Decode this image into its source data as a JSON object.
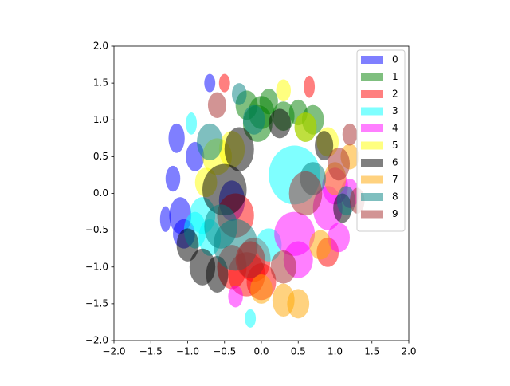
{
  "chart_data": {
    "type": "ellipse",
    "alpha": 0.5,
    "legend": "upper right",
    "xlim": [
      -2,
      2
    ],
    "ylim": [
      -2,
      2
    ],
    "xticks": [
      {
        "value": -2,
        "label": "−2.0"
      },
      {
        "value": -1.5,
        "label": "−1.5"
      },
      {
        "value": -1,
        "label": "−1.0"
      },
      {
        "value": -0.5,
        "label": "−0.5"
      },
      {
        "value": 0,
        "label": "0.0"
      },
      {
        "value": 0.5,
        "label": "0.5"
      },
      {
        "value": 1,
        "label": "1.0"
      },
      {
        "value": 1.5,
        "label": "1.5"
      },
      {
        "value": 2,
        "label": "2.0"
      }
    ],
    "yticks": [
      {
        "value": -2,
        "label": "−2.0"
      },
      {
        "value": -1.5,
        "label": "−1.5"
      },
      {
        "value": -1,
        "label": "−1.0"
      },
      {
        "value": -0.5,
        "label": "−0.5"
      },
      {
        "value": 0,
        "label": "0.0"
      },
      {
        "value": 0.5,
        "label": "0.5"
      },
      {
        "value": 1,
        "label": "1.0"
      },
      {
        "value": 1.5,
        "label": "1.5"
      },
      {
        "value": 2,
        "label": "2.0"
      }
    ],
    "series": [
      {
        "name": "0",
        "color": "blue",
        "x": [
          -1.1,
          -0.7,
          -1.15,
          -1.2,
          -1.3,
          -0.4,
          -0.9,
          -1.05
        ],
        "y": [
          -0.3,
          1.5,
          0.75,
          0.2,
          -0.35,
          -0.1,
          0.5,
          -0.55
        ],
        "width": [
          0.3,
          0.15,
          0.22,
          0.2,
          0.15,
          0.35,
          0.25,
          0.3
        ],
        "height": [
          0.5,
          0.25,
          0.4,
          0.35,
          0.35,
          0.55,
          0.4,
          0.4
        ]
      },
      {
        "name": "1",
        "color": "green",
        "x": [
          0.0,
          0.3,
          -0.2,
          0.5,
          0.7,
          0.1,
          -0.05,
          0.6
        ],
        "y": [
          1.1,
          1.05,
          1.2,
          1.1,
          1.0,
          1.25,
          0.95,
          0.9
        ],
        "width": [
          0.35,
          0.3,
          0.3,
          0.25,
          0.3,
          0.25,
          0.4,
          0.3
        ],
        "height": [
          0.45,
          0.4,
          0.4,
          0.35,
          0.4,
          0.35,
          0.5,
          0.4
        ]
      },
      {
        "name": "2",
        "color": "red",
        "x": [
          -0.2,
          -0.4,
          0.0,
          0.9,
          -0.5,
          0.65,
          -0.35,
          -0.1
        ],
        "y": [
          -1.1,
          -1.0,
          -1.2,
          -0.8,
          1.5,
          1.45,
          -0.3,
          -0.9
        ],
        "width": [
          0.5,
          0.4,
          0.4,
          0.3,
          0.15,
          0.15,
          0.5,
          0.45
        ],
        "height": [
          0.6,
          0.6,
          0.5,
          0.4,
          0.25,
          0.3,
          0.6,
          0.6
        ]
      },
      {
        "name": "3",
        "color": "cyan",
        "x": [
          -0.9,
          -0.7,
          -0.15,
          0.45,
          -0.95,
          0.1,
          -0.8
        ],
        "y": [
          -0.5,
          -0.6,
          -1.7,
          0.25,
          0.95,
          -0.7,
          -0.3
        ],
        "width": [
          0.3,
          0.3,
          0.15,
          0.7,
          0.15,
          0.35,
          0.35
        ],
        "height": [
          0.5,
          0.5,
          0.25,
          0.8,
          0.3,
          0.45,
          0.5
        ]
      },
      {
        "name": "4",
        "color": "magenta",
        "x": [
          0.9,
          1.0,
          0.45,
          0.5,
          -0.35,
          1.2,
          1.05
        ],
        "y": [
          -0.2,
          0.1,
          -0.55,
          -0.9,
          -1.4,
          0.0,
          -0.6
        ],
        "width": [
          0.4,
          0.35,
          0.55,
          0.4,
          0.2,
          0.25,
          0.3
        ],
        "height": [
          0.6,
          0.5,
          0.6,
          0.5,
          0.3,
          0.4,
          0.4
        ]
      },
      {
        "name": "5",
        "color": "yellow",
        "x": [
          -0.6,
          0.6,
          0.9,
          -0.4,
          0.3,
          -0.75
        ],
        "y": [
          0.5,
          0.9,
          0.7,
          0.6,
          1.4,
          0.15
        ],
        "width": [
          0.4,
          0.3,
          0.3,
          0.35,
          0.2,
          0.3
        ],
        "height": [
          0.5,
          0.4,
          0.4,
          0.5,
          0.3,
          0.4
        ]
      },
      {
        "name": "6",
        "color": "black",
        "x": [
          -0.8,
          -0.6,
          -0.5,
          -0.3,
          0.25,
          0.85,
          1.1,
          -1.0
        ],
        "y": [
          -1.0,
          -1.1,
          0.05,
          0.6,
          0.95,
          0.65,
          -0.2,
          -0.7
        ],
        "width": [
          0.35,
          0.3,
          0.6,
          0.4,
          0.3,
          0.25,
          0.25,
          0.3
        ],
        "height": [
          0.5,
          0.5,
          0.7,
          0.6,
          0.4,
          0.4,
          0.4,
          0.45
        ]
      },
      {
        "name": "7",
        "color": "orange",
        "x": [
          0.3,
          0.5,
          1.0,
          0.8,
          1.2,
          0.0
        ],
        "y": [
          -1.45,
          -1.5,
          0.2,
          -0.7,
          0.5,
          -1.3
        ],
        "width": [
          0.3,
          0.3,
          0.3,
          0.3,
          0.25,
          0.3
        ],
        "height": [
          0.45,
          0.4,
          0.45,
          0.4,
          0.35,
          0.4
        ]
      },
      {
        "name": "8",
        "color": "teal",
        "x": [
          -0.35,
          -0.1,
          -0.7,
          1.15,
          -0.3,
          0.7,
          -0.55
        ],
        "y": [
          -0.7,
          1.0,
          0.7,
          -0.1,
          1.35,
          0.2,
          -0.45
        ],
        "width": [
          0.6,
          0.3,
          0.35,
          0.25,
          0.2,
          0.35,
          0.45
        ],
        "height": [
          0.7,
          0.4,
          0.5,
          0.4,
          0.3,
          0.45,
          0.6
        ]
      },
      {
        "name": "9",
        "color": "brown",
        "x": [
          0.6,
          1.05,
          -0.15,
          1.3,
          -0.6,
          0.3,
          1.2
        ],
        "y": [
          0.0,
          0.4,
          -0.9,
          -0.1,
          1.2,
          -1.0,
          0.8
        ],
        "width": [
          0.45,
          0.3,
          0.4,
          0.2,
          0.25,
          0.35,
          0.2
        ],
        "height": [
          0.6,
          0.45,
          0.5,
          0.35,
          0.35,
          0.45,
          0.3
        ]
      }
    ]
  }
}
